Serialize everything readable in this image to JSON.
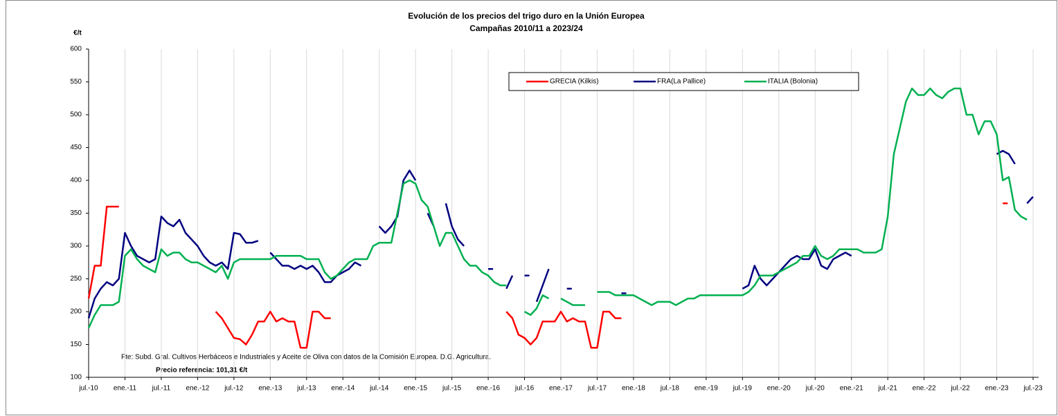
{
  "chart_data": {
    "type": "line",
    "title": "Evolución de los precios del trigo duro en la Unión Europea",
    "subtitle": "Campañas 2010/11 a 2023/24",
    "y_label": "€/t",
    "source": "Fte: Subd. Gral. Cultivos Herbáceos e Industriales y Aceite de Oliva con datos de la Comisión Europea. D.G. Agricultura.",
    "annotation": "Precio referencia: 101,31 €/t",
    "grid": "x",
    "x": [
      "2010-07",
      "2010-08",
      "2010-09",
      "2010-10",
      "2010-11",
      "2010-12",
      "2011-01",
      "2011-02",
      "2011-03",
      "2011-04",
      "2011-05",
      "2011-06",
      "2011-07",
      "2011-08",
      "2011-09",
      "2011-10",
      "2011-11",
      "2011-12",
      "2012-01",
      "2012-02",
      "2012-03",
      "2012-04",
      "2012-05",
      "2012-06",
      "2012-07",
      "2012-08",
      "2012-09",
      "2012-10",
      "2012-11",
      "2012-12",
      "2013-01",
      "2013-02",
      "2013-03",
      "2013-04",
      "2013-05",
      "2013-06",
      "2013-07",
      "2013-08",
      "2013-09",
      "2013-10",
      "2013-11",
      "2013-12",
      "2014-01",
      "2014-02",
      "2014-03",
      "2014-04",
      "2014-05",
      "2014-06",
      "2014-07",
      "2014-08",
      "2014-09",
      "2014-10",
      "2014-11",
      "2014-12",
      "2015-01",
      "2015-02",
      "2015-03",
      "2015-04",
      "2015-05",
      "2015-06",
      "2015-07",
      "2015-08",
      "2015-09",
      "2015-10",
      "2015-11",
      "2015-12",
      "2016-01",
      "2016-02",
      "2016-03",
      "2016-04",
      "2016-05",
      "2016-06",
      "2016-07",
      "2016-08",
      "2016-09",
      "2016-10",
      "2016-11",
      "2016-12",
      "2017-01",
      "2017-02",
      "2017-03",
      "2017-04",
      "2017-05",
      "2017-06",
      "2017-07",
      "2017-08",
      "2017-09",
      "2017-10",
      "2017-11",
      "2017-12",
      "2018-01",
      "2018-02",
      "2018-03",
      "2018-04",
      "2018-05",
      "2018-06",
      "2018-07",
      "2018-08",
      "2018-09",
      "2018-10",
      "2018-11",
      "2018-12",
      "2019-01",
      "2019-02",
      "2019-03",
      "2019-04",
      "2019-05",
      "2019-06",
      "2019-07",
      "2019-08",
      "2019-09",
      "2019-10",
      "2019-11",
      "2019-12",
      "2020-01",
      "2020-02",
      "2020-03",
      "2020-04",
      "2020-05",
      "2020-06",
      "2020-07",
      "2020-08",
      "2020-09",
      "2020-10",
      "2020-11",
      "2020-12",
      "2021-01",
      "2021-02",
      "2021-03",
      "2021-04",
      "2021-05",
      "2021-06",
      "2021-07",
      "2021-08",
      "2021-09",
      "2021-10",
      "2021-11",
      "2021-12",
      "2022-01",
      "2022-02",
      "2022-03",
      "2022-04",
      "2022-05",
      "2022-06",
      "2022-07",
      "2022-08",
      "2022-09",
      "2022-10",
      "2022-11",
      "2022-12",
      "2023-01",
      "2023-02",
      "2023-03",
      "2023-04",
      "2023-05",
      "2023-06",
      "2023-07"
    ],
    "series": [
      {
        "name": "GRECIA (Kilkis)",
        "color": "#ff0000",
        "values": [
          220,
          270,
          270,
          360,
          360,
          360,
          null,
          null,
          null,
          null,
          null,
          null,
          null,
          null,
          null,
          null,
          null,
          null,
          null,
          null,
          null,
          200,
          190,
          175,
          160,
          158,
          150,
          165,
          185,
          185,
          200,
          185,
          190,
          185,
          185,
          145,
          145,
          200,
          200,
          190,
          190,
          null,
          null,
          null,
          null,
          null,
          null,
          null,
          null,
          null,
          null,
          null,
          null,
          null,
          null,
          null,
          null,
          null,
          null,
          null,
          null,
          null,
          null,
          null,
          null,
          null,
          null,
          null,
          null,
          200,
          190,
          165,
          160,
          150,
          160,
          185,
          185,
          185,
          200,
          185,
          190,
          185,
          185,
          145,
          145,
          200,
          200,
          190,
          190,
          null,
          null,
          null,
          null,
          null,
          null,
          null,
          null,
          null,
          null,
          null,
          null,
          null,
          null,
          null,
          null,
          null,
          null,
          null,
          null,
          null,
          null,
          null,
          null,
          null,
          null,
          null,
          null,
          null,
          null,
          null,
          null,
          null,
          null,
          null,
          null,
          null,
          null,
          null,
          null,
          null,
          null,
          null,
          null,
          null,
          null,
          null,
          null,
          null,
          null,
          null,
          null,
          null,
          null,
          null,
          null,
          null,
          null,
          null,
          null,
          null,
          null,
          365,
          null,
          null,
          null,
          null,
          null
        ]
      },
      {
        "name": "FRA(La Pallice)",
        "color": "#000080",
        "values": [
          190,
          220,
          235,
          245,
          240,
          250,
          320,
          300,
          285,
          280,
          275,
          280,
          345,
          335,
          330,
          340,
          320,
          310,
          300,
          285,
          275,
          270,
          275,
          265,
          320,
          318,
          305,
          305,
          308,
          null,
          290,
          280,
          270,
          270,
          265,
          270,
          265,
          270,
          260,
          245,
          245,
          255,
          260,
          265,
          275,
          270,
          null,
          null,
          330,
          320,
          330,
          345,
          400,
          415,
          400,
          null,
          350,
          330,
          null,
          365,
          330,
          310,
          300,
          null,
          null,
          null,
          265,
          null,
          null,
          235,
          255,
          null,
          255,
          null,
          215,
          240,
          265,
          null,
          null,
          235,
          null,
          null,
          null,
          null,
          null,
          null,
          null,
          null,
          228,
          null,
          null,
          null,
          null,
          null,
          null,
          null,
          null,
          null,
          null,
          null,
          null,
          null,
          null,
          null,
          null,
          null,
          null,
          null,
          235,
          240,
          270,
          250,
          240,
          250,
          260,
          270,
          280,
          285,
          280,
          280,
          295,
          270,
          265,
          280,
          285,
          290,
          285,
          null,
          null,
          null,
          null,
          null,
          null,
          null,
          null,
          null,
          null,
          null,
          null,
          null,
          null,
          null,
          null,
          null,
          null,
          null,
          null,
          null,
          null,
          null,
          440,
          445,
          440,
          425,
          null,
          365,
          375
        ]
      },
      {
        "name": "ITALIA (Bolonia)",
        "color": "#00b050",
        "values": [
          175,
          195,
          210,
          210,
          210,
          215,
          285,
          295,
          280,
          270,
          265,
          260,
          295,
          285,
          290,
          290,
          280,
          275,
          275,
          270,
          265,
          260,
          270,
          250,
          275,
          280,
          280,
          280,
          280,
          280,
          280,
          285,
          285,
          285,
          285,
          285,
          280,
          280,
          280,
          260,
          250,
          255,
          265,
          275,
          280,
          280,
          280,
          300,
          305,
          305,
          305,
          350,
          395,
          400,
          395,
          370,
          360,
          330,
          300,
          320,
          320,
          300,
          280,
          270,
          270,
          260,
          255,
          245,
          240,
          240,
          null,
          null,
          200,
          195,
          205,
          225,
          220,
          null,
          220,
          215,
          210,
          210,
          210,
          null,
          230,
          230,
          230,
          225,
          225,
          225,
          225,
          220,
          215,
          210,
          215,
          215,
          215,
          210,
          215,
          220,
          220,
          225,
          225,
          225,
          225,
          225,
          225,
          225,
          225,
          230,
          240,
          255,
          255,
          255,
          260,
          265,
          270,
          275,
          285,
          285,
          300,
          285,
          280,
          285,
          295,
          295,
          295,
          295,
          290,
          290,
          290,
          295,
          345,
          440,
          480,
          520,
          540,
          530,
          530,
          540,
          530,
          525,
          535,
          540,
          540,
          500,
          500,
          470,
          490,
          490,
          470,
          400,
          405,
          355,
          345,
          340,
          null
        ]
      }
    ],
    "xlim": [
      "2010-07",
      "2023-07"
    ],
    "xticks": [
      {
        "value": "2010-07",
        "label": "jul.-10"
      },
      {
        "value": "2011-01",
        "label": "ene.-11"
      },
      {
        "value": "2011-07",
        "label": "jul.-11"
      },
      {
        "value": "2012-01",
        "label": "ene.-12"
      },
      {
        "value": "2012-07",
        "label": "jul.-12"
      },
      {
        "value": "2013-01",
        "label": "ene.-13"
      },
      {
        "value": "2013-07",
        "label": "jul.-13"
      },
      {
        "value": "2014-01",
        "label": "ene.-14"
      },
      {
        "value": "2014-07",
        "label": "jul.-14"
      },
      {
        "value": "2015-01",
        "label": "ene.-15"
      },
      {
        "value": "2015-07",
        "label": "jul.-15"
      },
      {
        "value": "2016-01",
        "label": "ene.-16"
      },
      {
        "value": "2016-07",
        "label": "jul.-16"
      },
      {
        "value": "2017-01",
        "label": "ene.-17"
      },
      {
        "value": "2017-07",
        "label": "jul.-17"
      },
      {
        "value": "2018-01",
        "label": "ene.-18"
      },
      {
        "value": "2018-07",
        "label": "jul.-18"
      },
      {
        "value": "2019-01",
        "label": "ene.-19"
      },
      {
        "value": "2019-07",
        "label": "jul.-19"
      },
      {
        "value": "2020-01",
        "label": "ene.-20"
      },
      {
        "value": "2020-07",
        "label": "jul.-20"
      },
      {
        "value": "2021-01",
        "label": "ene.-21"
      },
      {
        "value": "2021-07",
        "label": "jul.-21"
      },
      {
        "value": "2022-01",
        "label": "ene.-22"
      },
      {
        "value": "2022-07",
        "label": "jul.-22"
      },
      {
        "value": "2023-01",
        "label": "ene.-23"
      },
      {
        "value": "2023-07",
        "label": "jul.-23"
      }
    ],
    "ylim": [
      100,
      600
    ],
    "yticks": [
      100,
      150,
      200,
      250,
      300,
      350,
      400,
      450,
      500,
      550,
      600
    ]
  }
}
